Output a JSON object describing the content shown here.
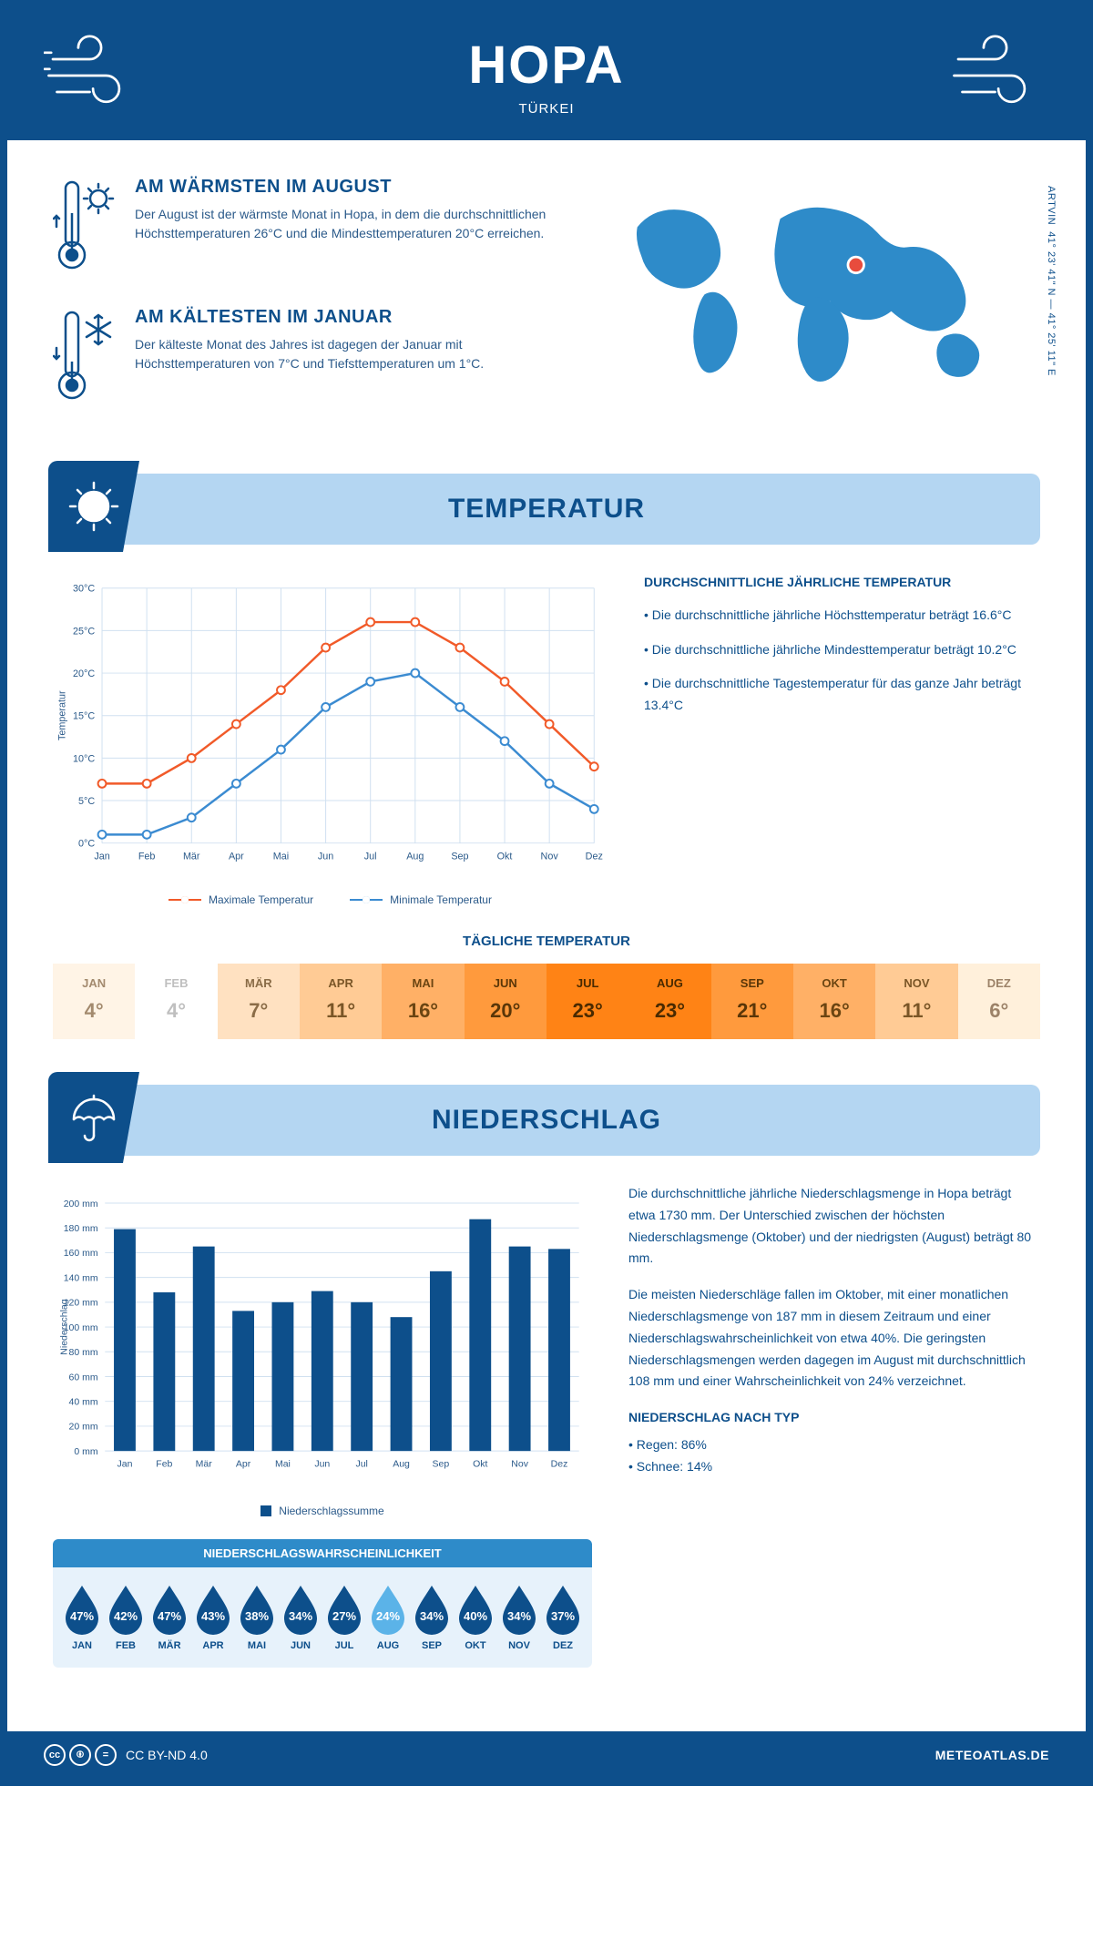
{
  "header": {
    "title": "HOPA",
    "subtitle": "TÜRKEI",
    "coords": "41° 23' 41\" N — 41° 25' 11\" E",
    "region": "ARTVIN"
  },
  "colors": {
    "brand": "#0d4f8b",
    "banner_bg": "#b4d6f2",
    "max_line": "#f15a29",
    "min_line": "#3b8bd1",
    "bar": "#0d4f8b",
    "grid": "#d0e0f0",
    "drop_fill": "#0d4f8b",
    "drop_light": "#5bb3e8"
  },
  "summary": {
    "warm": {
      "title": "AM WÄRMSTEN IM AUGUST",
      "text": "Der August ist der wärmste Monat in Hopa, in dem die durchschnittlichen Höchsttemperaturen 26°C und die Mindesttemperaturen 20°C erreichen."
    },
    "cold": {
      "title": "AM KÄLTESTEN IM JANUAR",
      "text": "Der kälteste Monat des Jahres ist dagegen der Januar mit Höchsttemperaturen von 7°C und Tiefsttemperaturen um 1°C."
    }
  },
  "sections": {
    "temp": "TEMPERATUR",
    "precip": "NIEDERSCHLAG"
  },
  "temp_chart": {
    "type": "line",
    "months": [
      "Jan",
      "Feb",
      "Mär",
      "Apr",
      "Mai",
      "Jun",
      "Jul",
      "Aug",
      "Sep",
      "Okt",
      "Nov",
      "Dez"
    ],
    "max": [
      7,
      7,
      10,
      14,
      18,
      23,
      26,
      26,
      23,
      19,
      14,
      9
    ],
    "min": [
      1,
      1,
      3,
      7,
      11,
      16,
      19,
      20,
      16,
      12,
      7,
      4
    ],
    "ylim": [
      0,
      30
    ],
    "ytick_step": 5,
    "ylabel": "Temperatur",
    "legend_max": "Maximale Temperatur",
    "legend_min": "Minimale Temperatur"
  },
  "temp_annual": {
    "title": "DURCHSCHNITTLICHE JÄHRLICHE TEMPERATUR",
    "b1": "• Die durchschnittliche jährliche Höchsttemperatur beträgt 16.6°C",
    "b2": "• Die durchschnittliche jährliche Mindesttemperatur beträgt 10.2°C",
    "b3": "• Die durchschnittliche Tagestemperatur für das ganze Jahr beträgt 13.4°C"
  },
  "daily_temp": {
    "title": "TÄGLICHE TEMPERATUR",
    "months": [
      "JAN",
      "FEB",
      "MÄR",
      "APR",
      "MAI",
      "JUN",
      "JUL",
      "AUG",
      "SEP",
      "OKT",
      "NOV",
      "DEZ"
    ],
    "values": [
      "4°",
      "4°",
      "7°",
      "11°",
      "16°",
      "20°",
      "23°",
      "23°",
      "21°",
      "16°",
      "11°",
      "6°"
    ],
    "cell_colors": [
      "#fff4e6",
      "#ffffff",
      "#ffe1c1",
      "#ffcb95",
      "#ffb066",
      "#ff9a3d",
      "#ff8315",
      "#ff8315",
      "#ff9a3d",
      "#ffb066",
      "#ffcb95",
      "#fff0db"
    ],
    "text_colors": [
      "#a38a6e",
      "#bfbfbf",
      "#8a6c47",
      "#7a5627",
      "#6b4512",
      "#5a3608",
      "#4a2a00",
      "#4a2a00",
      "#5a3608",
      "#6b4512",
      "#7a5627",
      "#9c8268"
    ]
  },
  "precip_chart": {
    "type": "bar",
    "months": [
      "Jan",
      "Feb",
      "Mär",
      "Apr",
      "Mai",
      "Jun",
      "Jul",
      "Aug",
      "Sep",
      "Okt",
      "Nov",
      "Dez"
    ],
    "values": [
      179,
      128,
      165,
      113,
      120,
      129,
      120,
      108,
      145,
      187,
      165,
      163
    ],
    "ylim": [
      0,
      200
    ],
    "ytick_step": 20,
    "ylabel": "Niederschlag",
    "legend": "Niederschlagssumme"
  },
  "precip_text": {
    "p1": "Die durchschnittliche jährliche Niederschlagsmenge in Hopa beträgt etwa 1730 mm. Der Unterschied zwischen der höchsten Niederschlagsmenge (Oktober) und der niedrigsten (August) beträgt 80 mm.",
    "p2": "Die meisten Niederschläge fallen im Oktober, mit einer monatlichen Niederschlagsmenge von 187 mm in diesem Zeitraum und einer Niederschlagswahrscheinlichkeit von etwa 40%. Die geringsten Niederschlagsmengen werden dagegen im August mit durchschnittlich 108 mm und einer Wahrscheinlichkeit von 24% verzeichnet.",
    "type_title": "NIEDERSCHLAG NACH TYP",
    "type_b1": "• Regen: 86%",
    "type_b2": "• Schnee: 14%"
  },
  "precip_prob": {
    "title": "NIEDERSCHLAGSWAHRSCHEINLICHKEIT",
    "months": [
      "JAN",
      "FEB",
      "MÄR",
      "APR",
      "MAI",
      "JUN",
      "JUL",
      "AUG",
      "SEP",
      "OKT",
      "NOV",
      "DEZ"
    ],
    "values": [
      "47%",
      "42%",
      "47%",
      "43%",
      "38%",
      "34%",
      "27%",
      "24%",
      "34%",
      "40%",
      "34%",
      "37%"
    ],
    "light_index": 7
  },
  "footer": {
    "license": "CC BY-ND 4.0",
    "site": "METEOATLAS.DE"
  }
}
